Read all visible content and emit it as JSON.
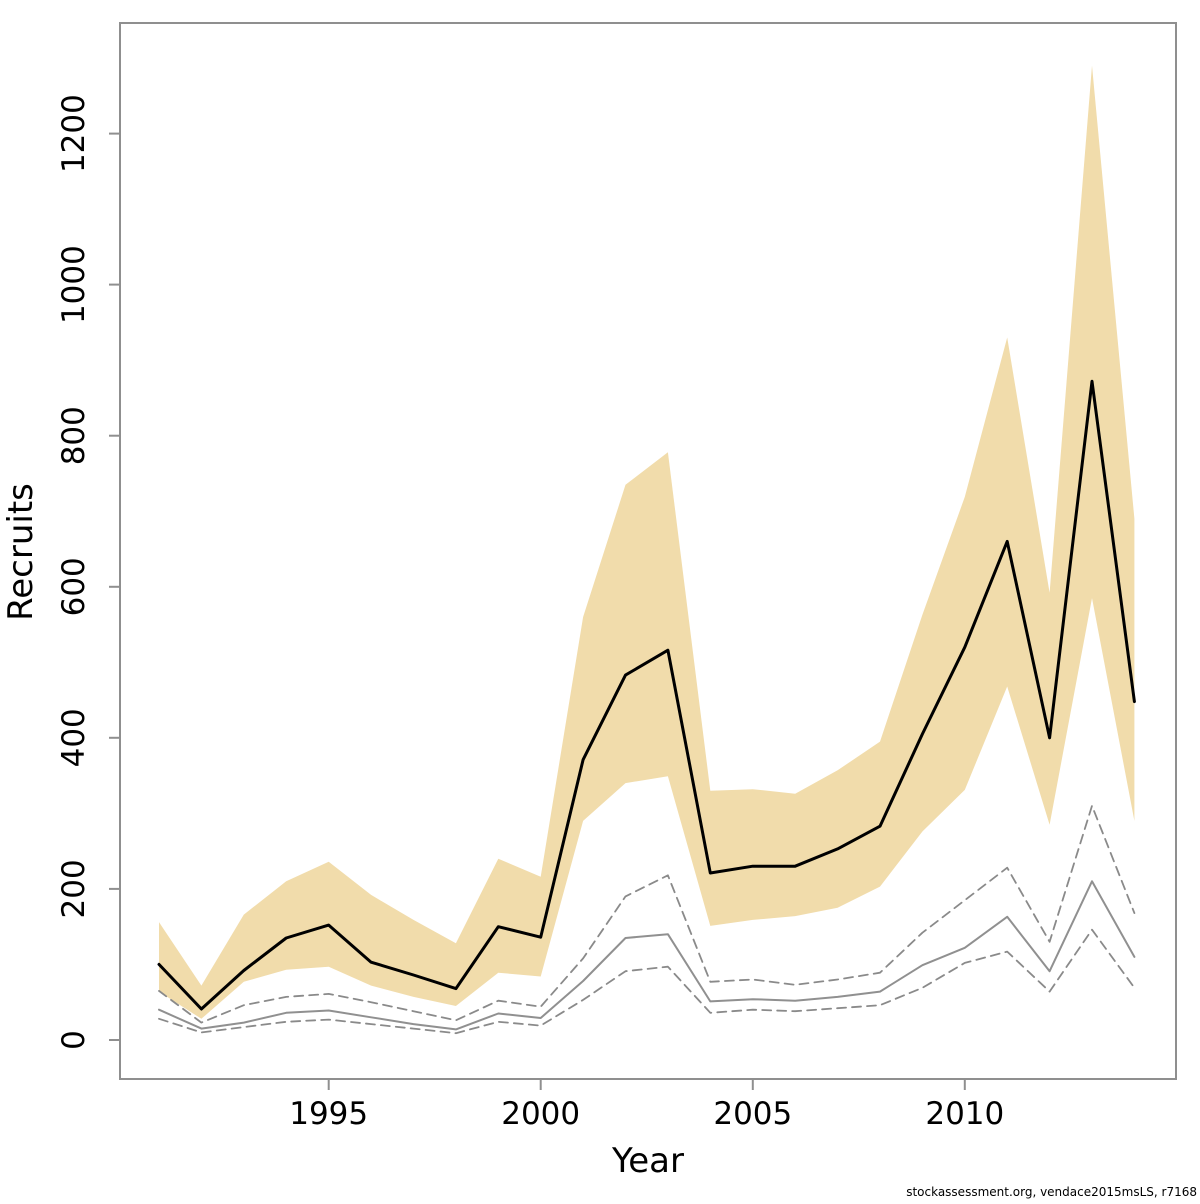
{
  "chart_data": {
    "type": "line",
    "title": "",
    "xlabel": "Year",
    "ylabel": "Recruits",
    "footer": "stockassessment.org, vendace2015msLS, r7168",
    "x": [
      1991,
      1992,
      1993,
      1994,
      1995,
      1996,
      1997,
      1998,
      1999,
      2000,
      2001,
      2002,
      2003,
      2004,
      2005,
      2006,
      2007,
      2008,
      2009,
      2010,
      2011,
      2012,
      2013,
      2014
    ],
    "series": [
      {
        "name": "recruit-estimate",
        "type": "line",
        "color": "black",
        "values": [
          100,
          41,
          92,
          135,
          152,
          103,
          86,
          68,
          150,
          136,
          371,
          483,
          516,
          221,
          230,
          230,
          253,
          283,
          405,
          520,
          660,
          400,
          872,
          448
        ]
      },
      {
        "name": "recruit-estimate-ci-band",
        "type": "band",
        "color": "wheat",
        "hi": [
          156,
          72,
          166,
          210,
          236,
          192,
          159,
          128,
          240,
          216,
          560,
          735,
          778,
          330,
          332,
          326,
          357,
          395,
          563,
          719,
          930,
          592,
          1290,
          690
        ],
        "lo": [
          64,
          28,
          77,
          93,
          97,
          72,
          57,
          45,
          89,
          84,
          290,
          340,
          349,
          151,
          159,
          164,
          175,
          203,
          276,
          331,
          468,
          285,
          585,
          290
        ]
      },
      {
        "name": "observed-recruits",
        "type": "line",
        "color": "gray",
        "values": [
          40,
          15,
          23,
          36,
          39,
          30,
          21,
          14,
          35,
          29,
          78,
          135,
          140,
          51,
          54,
          52,
          57,
          64,
          99,
          122,
          163,
          91,
          210,
          110
        ]
      },
      {
        "name": "observed-ci-upper",
        "type": "dashed",
        "color": "gray",
        "values": [
          65,
          23,
          46,
          57,
          61,
          50,
          38,
          26,
          52,
          44,
          108,
          190,
          218,
          77,
          80,
          73,
          80,
          89,
          142,
          185,
          228,
          130,
          310,
          168
        ]
      },
      {
        "name": "observed-ci-lower",
        "type": "dashed",
        "color": "gray",
        "values": [
          28,
          10,
          17,
          24,
          27,
          21,
          15,
          9,
          24,
          19,
          53,
          91,
          97,
          36,
          40,
          38,
          42,
          46,
          69,
          102,
          117,
          64,
          146,
          69
        ]
      }
    ],
    "xticks": [
      1995,
      2000,
      2005,
      2010
    ],
    "yticks": [
      0,
      200,
      400,
      600,
      800,
      1000,
      1200
    ],
    "xlim": [
      1990.08,
      2014.98
    ],
    "ylim": [
      -51.7,
      1346.4
    ],
    "grid": false,
    "legend": "none",
    "colors": {
      "band": "#f1dcab",
      "fit_line": "#000000",
      "observed_line": "#909090",
      "ci_line": "#8a8a8a",
      "frame": "#8f8f8f",
      "text": "#000000"
    }
  }
}
